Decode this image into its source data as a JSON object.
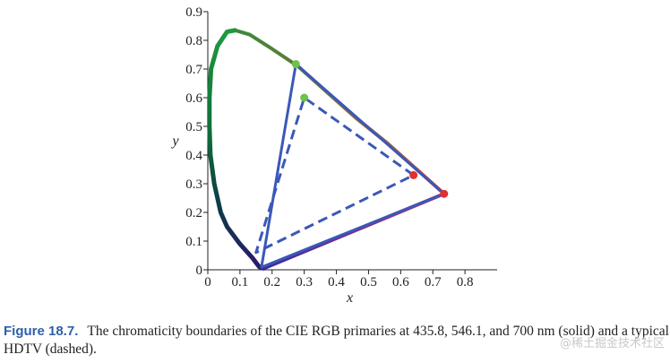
{
  "chart_data": {
    "type": "scatter",
    "title": "",
    "xlabel": "x",
    "ylabel": "y",
    "xlim": [
      0,
      0.9
    ],
    "ylim": [
      0,
      0.9
    ],
    "x_ticks": [
      "0",
      "0.1",
      "0.2",
      "0.3",
      "0.4",
      "0.5",
      "0.6",
      "0.7",
      "0.8"
    ],
    "y_ticks": [
      "0",
      "0.1",
      "0.2",
      "0.3",
      "0.4",
      "0.5",
      "0.6",
      "0.7",
      "0.8",
      "0.9"
    ],
    "spectral_locus": [
      {
        "x": 0.174,
        "y": 0.005
      },
      {
        "x": 0.16,
        "y": 0.01
      },
      {
        "x": 0.14,
        "y": 0.04
      },
      {
        "x": 0.1,
        "y": 0.09
      },
      {
        "x": 0.06,
        "y": 0.15
      },
      {
        "x": 0.04,
        "y": 0.2
      },
      {
        "x": 0.02,
        "y": 0.3
      },
      {
        "x": 0.008,
        "y": 0.4
      },
      {
        "x": 0.005,
        "y": 0.5
      },
      {
        "x": 0.005,
        "y": 0.6
      },
      {
        "x": 0.01,
        "y": 0.7
      },
      {
        "x": 0.03,
        "y": 0.78
      },
      {
        "x": 0.06,
        "y": 0.83
      },
      {
        "x": 0.085,
        "y": 0.835
      },
      {
        "x": 0.13,
        "y": 0.82
      },
      {
        "x": 0.2,
        "y": 0.77
      },
      {
        "x": 0.28,
        "y": 0.71
      },
      {
        "x": 0.37,
        "y": 0.62
      },
      {
        "x": 0.46,
        "y": 0.53
      },
      {
        "x": 0.56,
        "y": 0.44
      },
      {
        "x": 0.65,
        "y": 0.35
      },
      {
        "x": 0.735,
        "y": 0.265
      }
    ],
    "series": [
      {
        "style": "solid",
        "color": "#3a58b8",
        "points": [
          {
            "x": 0.735,
            "y": 0.265
          },
          {
            "x": 0.274,
            "y": 0.717
          },
          {
            "x": 0.167,
            "y": 0.009
          }
        ]
      },
      {
        "style": "dashed",
        "color": "#3a58b8",
        "points": [
          {
            "x": 0.64,
            "y": 0.33
          },
          {
            "x": 0.3,
            "y": 0.6
          },
          {
            "x": 0.15,
            "y": 0.06
          }
        ]
      }
    ],
    "grid": false
  },
  "caption": {
    "figure_label": "Figure 18.7.",
    "text": "The chromaticity boundaries of the CIE RGB primaries at 435.8, 546.1, and 700 nm (solid) and a typical HDTV (dashed)."
  },
  "watermark": "@稀土掘金技术社区",
  "colors": {
    "triangle": "#3a58b8",
    "green_primary": "#6cc24a",
    "red_primary": "#e03030",
    "axis": "#222222",
    "caption_label": "#2f5fa8"
  }
}
